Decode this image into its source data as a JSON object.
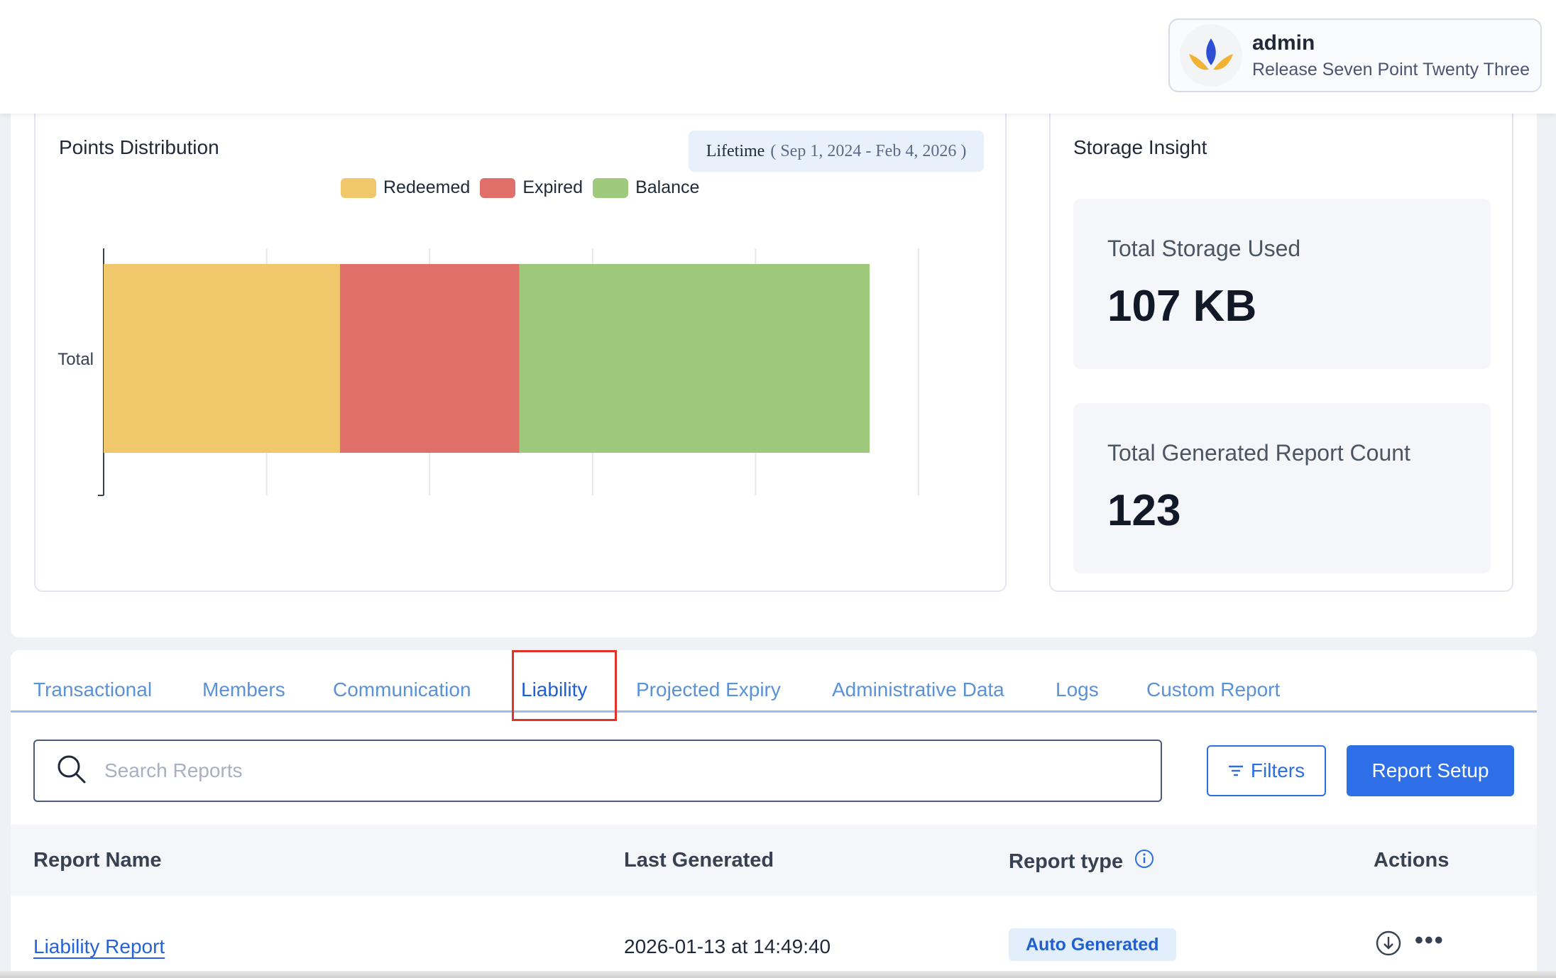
{
  "header": {
    "user_name": "admin",
    "release": "Release Seven Point Twenty Three"
  },
  "points_card": {
    "title": "Points Distribution",
    "lifetime_label": "Lifetime",
    "lifetime_range": "( Sep 1, 2024 - Feb 4, 2026 )"
  },
  "chart_data": {
    "type": "bar",
    "orientation": "horizontal",
    "stacked": true,
    "categories": [
      "Total"
    ],
    "series": [
      {
        "name": "Redeemed",
        "values": [
          29
        ],
        "color": "#f1c76b"
      },
      {
        "name": "Expired",
        "values": [
          22
        ],
        "color": "#e06f6a"
      },
      {
        "name": "Balance",
        "values": [
          43
        ],
        "color": "#9ec97d"
      }
    ],
    "xlim": [
      0,
      100
    ],
    "grid": true,
    "legend": "top"
  },
  "storage_card": {
    "title": "Storage Insight",
    "storage_label": "Total Storage Used",
    "storage_value": "107 KB",
    "report_count_label": "Total Generated Report Count",
    "report_count_value": "123"
  },
  "tabs": [
    {
      "label": "Transactional"
    },
    {
      "label": "Members"
    },
    {
      "label": "Communication"
    },
    {
      "label": "Liability",
      "active": true
    },
    {
      "label": "Projected Expiry"
    },
    {
      "label": "Administrative Data"
    },
    {
      "label": "Logs"
    },
    {
      "label": "Custom Report"
    }
  ],
  "search": {
    "placeholder": "Search Reports"
  },
  "buttons": {
    "filters": "Filters",
    "report_setup": "Report Setup"
  },
  "table": {
    "headers": {
      "name": "Report Name",
      "last_generated": "Last Generated",
      "report_type": "Report type",
      "actions": "Actions"
    },
    "rows": [
      {
        "name": "Liability Report",
        "last_generated": "2026-01-13 at 14:49:40",
        "type": "Auto Generated"
      }
    ]
  }
}
